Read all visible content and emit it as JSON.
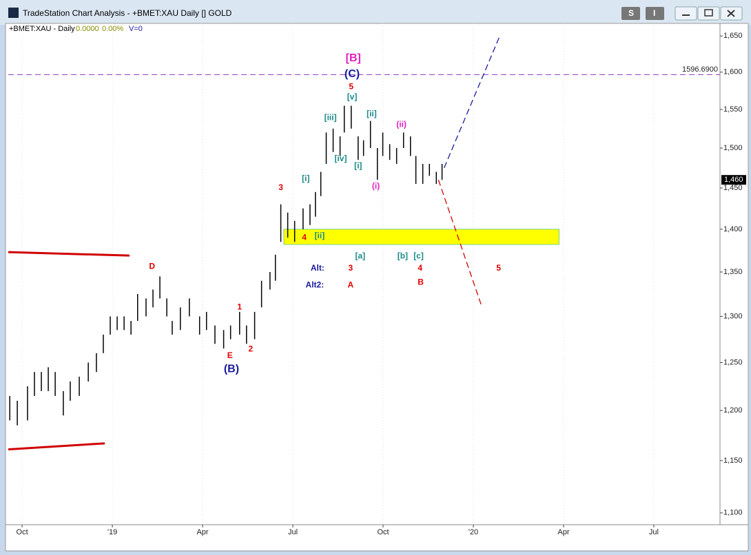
{
  "window": {
    "title": "TradeStation Chart Analysis - +BMET:XAU Daily [] GOLD",
    "buttons": [
      "S",
      "I"
    ]
  },
  "chart_data": {
    "type": "ohlc",
    "title": "+BMET:XAU - Daily",
    "quote": [
      "0.0000",
      "0.00%",
      "V=0"
    ],
    "color": "#000000",
    "x": [
      -0.41,
      -0.16,
      0.18,
      0.41,
      0.64,
      0.87,
      1.1,
      1.37,
      1.6,
      1.9,
      2.2,
      2.47,
      2.7,
      2.93,
      3.16,
      3.39,
      3.62,
      3.84,
      4.12,
      4.35,
      4.58,
      4.81,
      4.99,
      5.26,
      5.56,
      5.9,
      6.13,
      6.41,
      6.7,
      6.93,
      7.23,
      7.46,
      7.73,
      7.96,
      8.24,
      8.42,
      8.6,
      8.83,
      9.06,
      9.34,
      9.57,
      9.75,
      9.93,
      10.11,
      10.34,
      10.57,
      10.71,
      10.94,
      11.17,
      11.35,
      11.58,
      11.81,
      11.99,
      12.22,
      12.45,
      12.68,
      12.91,
      13.09,
      13.32,
      13.54,
      13.77,
      13.96
    ],
    "low": [
      1190,
      1185,
      1190,
      1215,
      1220,
      1220,
      1215,
      1195,
      1210,
      1215,
      1230,
      1240,
      1260,
      1280,
      1285,
      1285,
      1280,
      1295,
      1300,
      1310,
      1320,
      1300,
      1280,
      1285,
      1300,
      1280,
      1285,
      1270,
      1265,
      1275,
      1280,
      1270,
      1275,
      1310,
      1330,
      1340,
      1385,
      1390,
      1385,
      1400,
      1405,
      1415,
      1440,
      1480,
      1495,
      1490,
      1520,
      1525,
      1485,
      1490,
      1500,
      1460,
      1490,
      1485,
      1480,
      1500,
      1490,
      1455,
      1455,
      1465,
      1455,
      1460
    ],
    "high": [
      1215,
      1210,
      1225,
      1240,
      1240,
      1245,
      1240,
      1220,
      1230,
      1235,
      1250,
      1260,
      1280,
      1300,
      1300,
      1300,
      1295,
      1325,
      1320,
      1330,
      1345,
      1320,
      1295,
      1310,
      1320,
      1300,
      1305,
      1290,
      1285,
      1290,
      1305,
      1290,
      1305,
      1340,
      1350,
      1370,
      1430,
      1420,
      1410,
      1425,
      1430,
      1445,
      1470,
      1520,
      1525,
      1515,
      1555,
      1555,
      1515,
      1510,
      1535,
      1500,
      1520,
      1505,
      1500,
      1520,
      1515,
      1490,
      1480,
      1480,
      1470,
      1480
    ],
    "xlim": [
      -0.46,
      23.2
    ],
    "xticks": [
      {
        "value": 0,
        "label": "Oct"
      },
      {
        "value": 3,
        "label": "'19"
      },
      {
        "value": 6,
        "label": "Apr"
      },
      {
        "value": 9,
        "label": "Jul"
      },
      {
        "value": 12,
        "label": "Oct"
      },
      {
        "value": 15,
        "label": "'20"
      },
      {
        "value": 18,
        "label": "Apr"
      },
      {
        "value": 21,
        "label": "Jul"
      }
    ],
    "ylim": [
      1089,
      1657
    ],
    "log_scale": true,
    "yticks": [
      {
        "value": 1100,
        "label": "1,100"
      },
      {
        "value": 1150,
        "label": "1,150"
      },
      {
        "value": 1200,
        "label": "1,200"
      },
      {
        "value": 1250,
        "label": "1,250"
      },
      {
        "value": 1300,
        "label": "1,300"
      },
      {
        "value": 1350,
        "label": "1,350"
      },
      {
        "value": 1400,
        "label": "1,400"
      },
      {
        "value": 1450,
        "label": "1,450"
      },
      {
        "value": 1500,
        "label": "1,500"
      },
      {
        "value": 1550,
        "label": "1,550"
      },
      {
        "value": 1600,
        "label": "1,600"
      },
      {
        "value": 1650,
        "label": "1,650"
      }
    ],
    "grid": true,
    "last_price": {
      "value": 1460,
      "label": "1,460"
    },
    "reference_line": {
      "value": 1596.69,
      "label": "1596.6900",
      "color": "#9030c0"
    },
    "zone": {
      "x": [
        8.7,
        17.85
      ],
      "y": [
        1382,
        1400
      ],
      "color": "#ffff00"
    },
    "trendlines": [
      {
        "x": [
          -0.46,
          3.57
        ],
        "y": [
          1373,
          1369
        ],
        "color": "#d00000",
        "dashed": false
      },
      {
        "x": [
          -0.46,
          2.75
        ],
        "y": [
          1161,
          1167
        ],
        "color": "#d00000",
        "dashed": false
      },
      {
        "x": [
          14.03,
          15.88
        ],
        "y": [
          1475,
          1650
        ],
        "color": "#1a1aa0",
        "dashed": true
      },
      {
        "x": [
          13.84,
          15.26
        ],
        "y": [
          1460,
          1313
        ],
        "color": "#d00000",
        "dashed": true
      }
    ],
    "annotations": [
      {
        "text": "[B]",
        "x": 11.01,
        "y": 1619,
        "color": "#e020c0"
      },
      {
        "text": "(C)",
        "x": 10.97,
        "y": 1597,
        "color": "#1a1aa0"
      },
      {
        "text": "5",
        "x": 10.94,
        "y": 1580,
        "color": "#e00000"
      },
      {
        "text": "[v]",
        "x": 10.97,
        "y": 1566,
        "color": "#1a8a8a"
      },
      {
        "text": "[iii]",
        "x": 10.25,
        "y": 1539,
        "color": "#1a8a8a"
      },
      {
        "text": "[iv]",
        "x": 10.59,
        "y": 1486,
        "color": "#1a8a8a"
      },
      {
        "text": "[ii]",
        "x": 11.62,
        "y": 1544,
        "color": "#1a8a8a"
      },
      {
        "text": "[i]",
        "x": 11.17,
        "y": 1477,
        "color": "#1a8a8a"
      },
      {
        "text": "(ii)",
        "x": 12.61,
        "y": 1530,
        "color": "#e020c0"
      },
      {
        "text": "(i)",
        "x": 11.76,
        "y": 1452,
        "color": "#e020c0"
      },
      {
        "text": "[i]",
        "x": 9.43,
        "y": 1461,
        "color": "#1a8a8a"
      },
      {
        "text": "3",
        "x": 8.6,
        "y": 1450,
        "color": "#e00000"
      },
      {
        "text": "4",
        "x": 9.38,
        "y": 1390,
        "color": "#e00000"
      },
      {
        "text": "[ii]",
        "x": 9.89,
        "y": 1392,
        "color": "#1a8a8a"
      },
      {
        "text": "[a]",
        "x": 11.24,
        "y": 1368,
        "color": "#1a8a8a"
      },
      {
        "text": "[b]",
        "x": 12.65,
        "y": 1368,
        "color": "#1a8a8a"
      },
      {
        "text": "[c]",
        "x": 13.18,
        "y": 1368,
        "color": "#1a8a8a"
      },
      {
        "text": "Alt:",
        "x": 9.82,
        "y": 1354,
        "color": "#1a1aa0"
      },
      {
        "text": "3",
        "x": 10.92,
        "y": 1354,
        "color": "#e00000"
      },
      {
        "text": "4",
        "x": 13.23,
        "y": 1354,
        "color": "#e00000"
      },
      {
        "text": "5",
        "x": 15.84,
        "y": 1354,
        "color": "#e00000"
      },
      {
        "text": "Alt2:",
        "x": 9.73,
        "y": 1335,
        "color": "#1a1aa0"
      },
      {
        "text": "A",
        "x": 10.92,
        "y": 1335,
        "color": "#e00000"
      },
      {
        "text": "B",
        "x": 13.25,
        "y": 1338,
        "color": "#e00000"
      },
      {
        "text": "D",
        "x": 4.32,
        "y": 1356,
        "color": "#e00000"
      },
      {
        "text": "1",
        "x": 7.23,
        "y": 1310,
        "color": "#e00000"
      },
      {
        "text": "2",
        "x": 7.6,
        "y": 1264,
        "color": "#e00000"
      },
      {
        "text": "E",
        "x": 6.91,
        "y": 1257,
        "color": "#e00000"
      },
      {
        "text": "(B)",
        "x": 6.96,
        "y": 1243,
        "color": "#1a1aa0"
      }
    ]
  }
}
